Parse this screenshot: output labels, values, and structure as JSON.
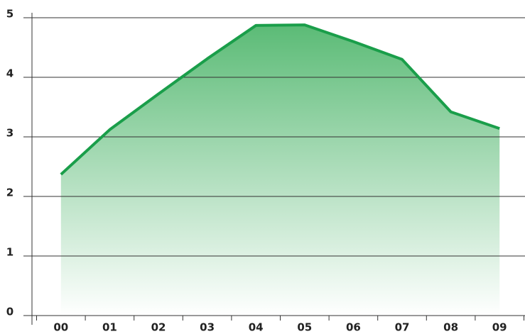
{
  "chart_data": {
    "type": "area",
    "categories": [
      "00",
      "01",
      "02",
      "03",
      "04",
      "05",
      "06",
      "07",
      "08",
      "09"
    ],
    "values": [
      2.37,
      3.12,
      3.72,
      4.31,
      4.87,
      4.88,
      4.6,
      4.3,
      3.42,
      3.14
    ],
    "color": "#1a9e4a",
    "ylim": [
      0,
      5
    ],
    "yticks": [
      0,
      1,
      2,
      3,
      4,
      5
    ],
    "grid": true
  }
}
